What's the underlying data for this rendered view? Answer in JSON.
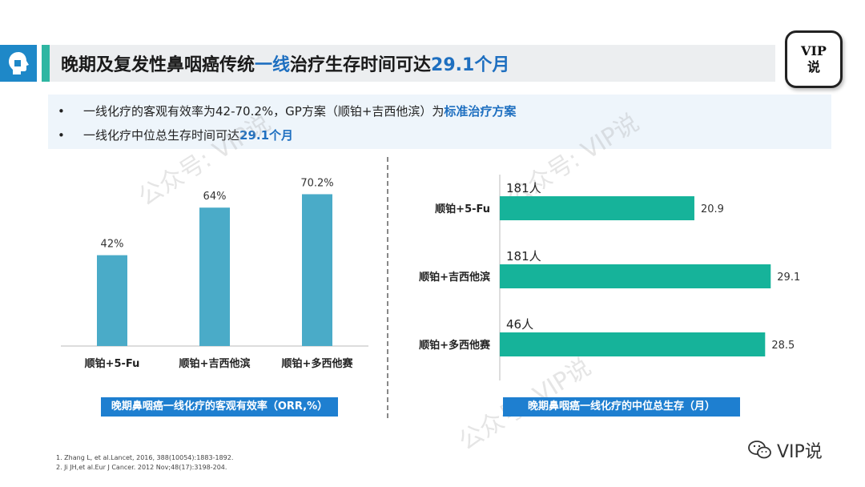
{
  "header": {
    "title_part1": "晚期及复发性鼻咽癌传统",
    "title_highlight1": "一线",
    "title_part2": "治疗生存时间可达",
    "title_highlight2": "29.1个月",
    "badge_line1": "VIP",
    "badge_line2": "说"
  },
  "bullets": [
    {
      "marker": "•",
      "text": "一线化疗的客观有效率为42-70.2%，GP方案（顺铂+吉西他滨）为",
      "highlight": "标准治疗方案"
    },
    {
      "marker": "•",
      "text": "一线化疗中位总生存时间可达",
      "highlight": "29.1个月"
    }
  ],
  "watermark_text": "公众号: VIP说",
  "chart_data": [
    {
      "type": "bar",
      "title": "晚期鼻咽癌一线化疗的客观有效率（ORR,%）",
      "categories": [
        "顺铂+5-Fu",
        "顺铂+吉西他滨",
        "顺铂+多西他赛"
      ],
      "values": [
        42,
        64,
        70.2
      ],
      "value_labels": [
        "42%",
        "64%",
        "70.2%"
      ],
      "ylim": [
        0,
        80
      ],
      "color": "#4aabc8"
    },
    {
      "type": "bar",
      "orientation": "horizontal",
      "title": "晚期鼻咽癌一线化疗的中位总生存（月）",
      "categories": [
        "顺铂+5-Fu",
        "顺铂+吉西他滨",
        "顺铂+多西他赛"
      ],
      "values": [
        20.9,
        29.1,
        28.5
      ],
      "value_labels": [
        "20.9",
        "29.1",
        "28.5"
      ],
      "sample_sizes": [
        "181人",
        "181人",
        "46人"
      ],
      "xlim": [
        0,
        32
      ],
      "color": "#16b39a"
    }
  ],
  "references": [
    "1. Zhang L, et al.Lancet, 2016, 388(10054):1883-1892.",
    "2. Ji JH,et al.Eur J Cancer. 2012 Nov;48(17):3198-204."
  ],
  "footer": {
    "brand": "VIP说"
  }
}
